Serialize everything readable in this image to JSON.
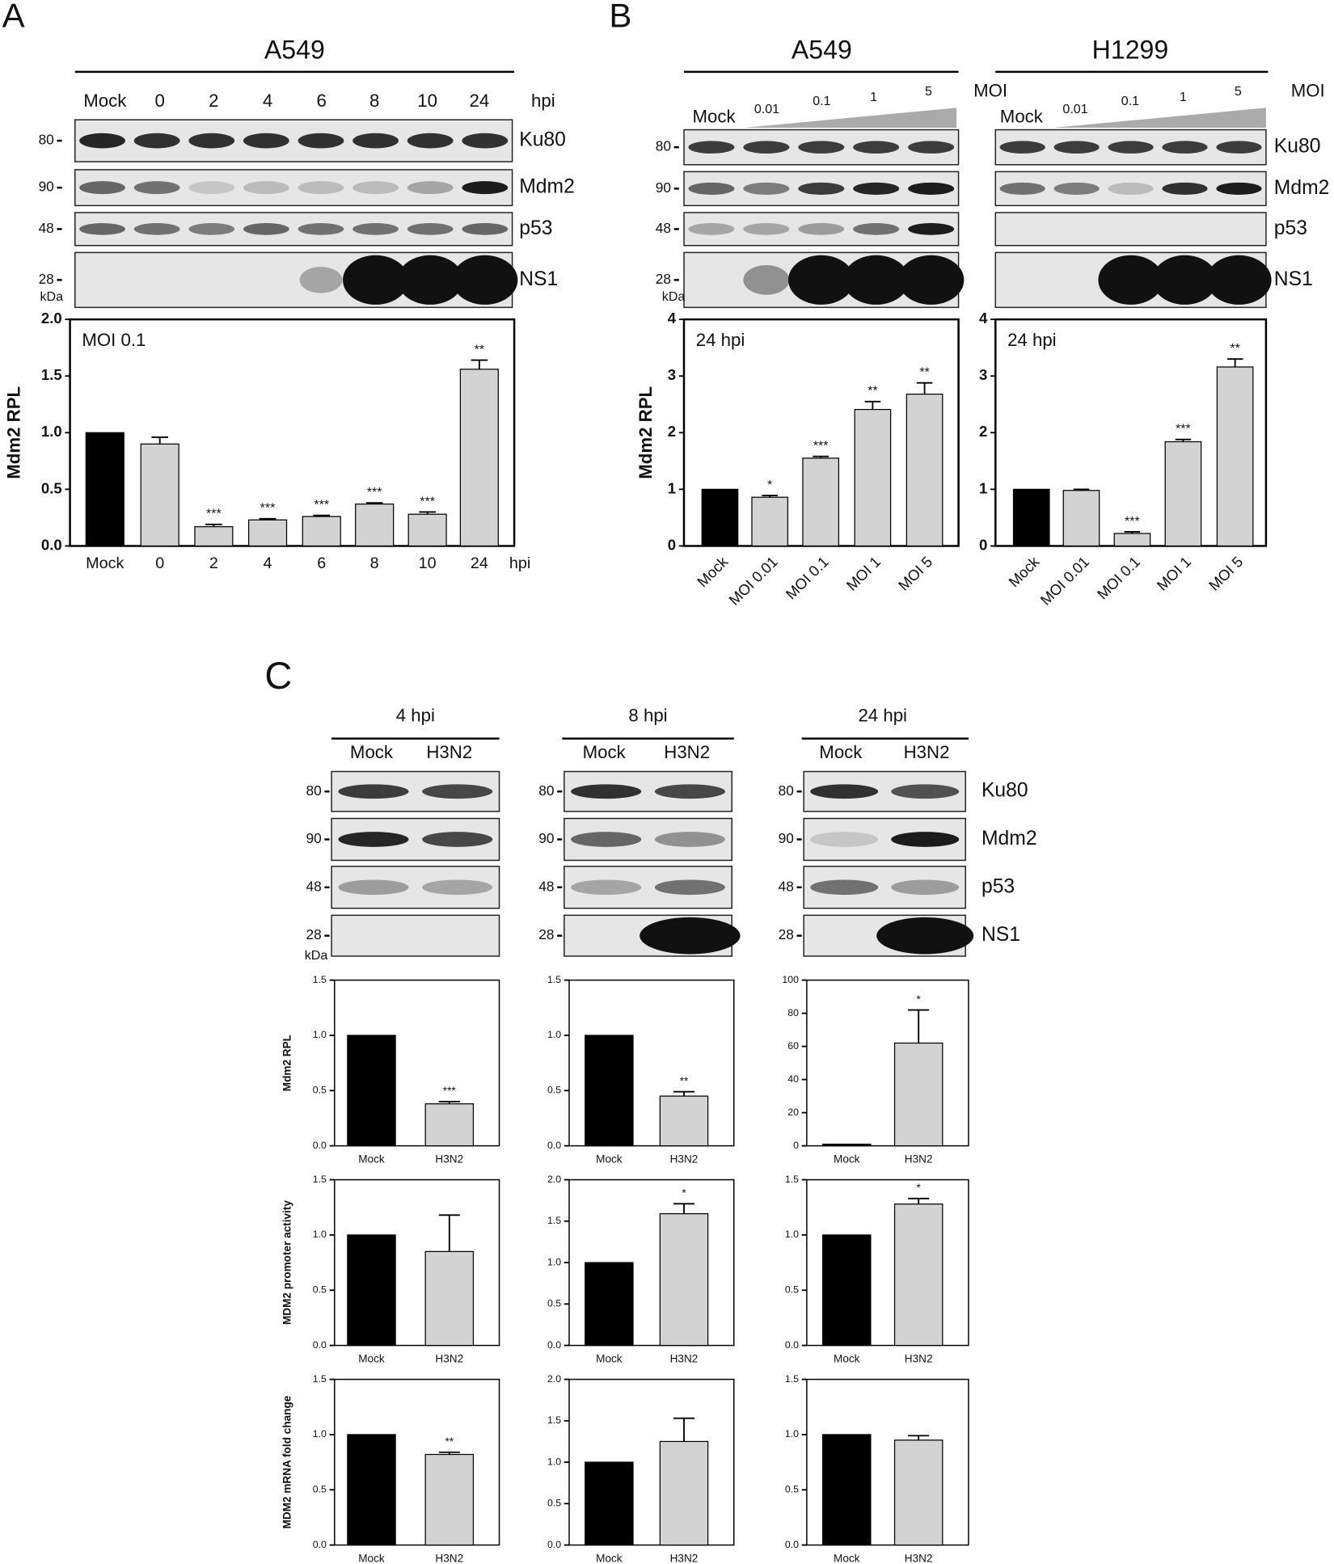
{
  "panel_labels": [
    "A",
    "B",
    "C"
  ],
  "blots": [
    {
      "title": "A549",
      "lanes": [
        "Mock",
        "0",
        "2",
        "4",
        "6",
        "8",
        "10",
        "24"
      ],
      "lane_unit": "hpi",
      "markers": [
        "80",
        "90",
        "48",
        "28"
      ],
      "marker_unit": "kDa",
      "proteins": [
        "Ku80",
        "Mdm2",
        "p53",
        "NS1"
      ]
    },
    {
      "title": "A549",
      "lanes": [
        "Mock",
        "0.01",
        "0.1",
        "1",
        "5"
      ],
      "lane_unit": "MOI",
      "markers": [
        "80",
        "90",
        "48",
        "28"
      ],
      "marker_unit": "kDa"
    },
    {
      "title": "H1299",
      "lanes": [
        "Mock",
        "0.01",
        "0.1",
        "1",
        "5"
      ],
      "lane_unit": "MOI",
      "proteins": [
        "Ku80",
        "Mdm2",
        "p53",
        "NS1"
      ]
    },
    {
      "title": "4 hpi",
      "lanes": [
        "Mock",
        "H3N2"
      ],
      "markers": [
        "80",
        "90",
        "48",
        "28"
      ],
      "marker_unit": "kDa"
    },
    {
      "title": "8 hpi",
      "lanes": [
        "Mock",
        "H3N2"
      ],
      "markers": [
        "80",
        "90",
        "48",
        "28"
      ]
    },
    {
      "title": "24 hpi",
      "lanes": [
        "Mock",
        "H3N2"
      ],
      "markers": [
        "80",
        "90",
        "48",
        "28"
      ],
      "proteins": [
        "Ku80",
        "Mdm2",
        "p53",
        "NS1"
      ]
    }
  ],
  "chart_data": [
    {
      "type": "bar",
      "annotation": "MOI 0.1",
      "y_label": "Mdm2 RPL",
      "x_unit": "hpi",
      "categories": [
        "Mock",
        "0",
        "2",
        "4",
        "6",
        "8",
        "10",
        "24"
      ],
      "values": [
        1,
        0.9,
        0.17,
        0.23,
        0.26,
        0.37,
        0.28,
        1.56
      ],
      "errors": [
        null,
        0.06,
        0.02,
        0.01,
        0.01,
        0.01,
        0.02,
        0.08
      ],
      "significance": [
        null,
        null,
        "***",
        "***",
        "***",
        "***",
        "***",
        "**"
      ],
      "colors": [
        "#000000",
        "#d3d3d3",
        "#d3d3d3",
        "#d3d3d3",
        "#d3d3d3",
        "#d3d3d3",
        "#d3d3d3",
        "#d3d3d3"
      ],
      "ylim": [
        0,
        2
      ],
      "yticks": [
        {
          "value": 0,
          "label": "0.0"
        },
        {
          "value": 0.5,
          "label": "0.5"
        },
        {
          "value": 1,
          "label": "1.0"
        },
        {
          "value": 1.5,
          "label": "1.5"
        },
        {
          "value": 2,
          "label": "2.0"
        }
      ]
    },
    {
      "type": "bar",
      "annotation": "24 hpi",
      "y_label": "Mdm2 RPL",
      "categories": [
        "Mock",
        "MOI 0.01",
        "MOI 0.1",
        "MOI 1",
        "MOI 5"
      ],
      "values": [
        1,
        0.86,
        1.55,
        2.41,
        2.68
      ],
      "errors": [
        null,
        0.03,
        0.03,
        0.14,
        0.2
      ],
      "significance": [
        null,
        "*",
        "***",
        "**",
        "**"
      ],
      "colors": [
        "#000000",
        "#d3d3d3",
        "#d3d3d3",
        "#d3d3d3",
        "#d3d3d3"
      ],
      "ylim": [
        0,
        4
      ],
      "yticks": [
        0,
        1,
        2,
        3,
        4
      ]
    },
    {
      "type": "bar",
      "annotation": "24 hpi",
      "categories": [
        "Mock",
        "MOI 0.01",
        "MOI 0.1",
        "MOI 1",
        "MOI 5"
      ],
      "values": [
        1,
        0.98,
        0.22,
        1.84,
        3.16
      ],
      "errors": [
        null,
        0.02,
        0.03,
        0.04,
        0.14
      ],
      "significance": [
        null,
        null,
        "***",
        "***",
        "**"
      ],
      "colors": [
        "#000000",
        "#d3d3d3",
        "#d3d3d3",
        "#d3d3d3",
        "#d3d3d3"
      ],
      "ylim": [
        0,
        4
      ],
      "yticks": [
        0,
        1,
        2,
        3,
        4
      ]
    },
    {
      "type": "bar",
      "y_label": "Mdm2 RPL",
      "categories": [
        "Mock",
        "H3N2"
      ],
      "values": [
        1,
        0.38
      ],
      "errors": [
        null,
        0.02
      ],
      "significance": [
        null,
        "***"
      ],
      "colors": [
        "#000000",
        "#d3d3d3"
      ],
      "ylim": [
        0,
        1.5
      ],
      "yticks": [
        {
          "value": 0,
          "label": "0.0"
        },
        {
          "value": 0.5,
          "label": "0.5"
        },
        {
          "value": 1,
          "label": "1.0"
        },
        {
          "value": 1.5,
          "label": "1.5"
        }
      ]
    },
    {
      "type": "bar",
      "categories": [
        "Mock",
        "H3N2"
      ],
      "values": [
        1,
        0.45
      ],
      "errors": [
        null,
        0.04
      ],
      "significance": [
        null,
        "**"
      ],
      "colors": [
        "#000000",
        "#d3d3d3"
      ],
      "ylim": [
        0,
        1.5
      ],
      "yticks": [
        {
          "value": 0,
          "label": "0.0"
        },
        {
          "value": 0.5,
          "label": "0.5"
        },
        {
          "value": 1,
          "label": "1.0"
        },
        {
          "value": 1.5,
          "label": "1.5"
        }
      ]
    },
    {
      "type": "bar",
      "categories": [
        "Mock",
        "H3N2"
      ],
      "values": [
        1,
        62
      ],
      "errors": [
        null,
        20
      ],
      "significance": [
        null,
        "*"
      ],
      "colors": [
        "#000000",
        "#d3d3d3"
      ],
      "ylim": [
        0,
        100
      ],
      "yticks": [
        0,
        20,
        40,
        60,
        80,
        100
      ]
    },
    {
      "type": "bar",
      "y_label": "MDM2 promoter activity",
      "categories": [
        "Mock",
        "H3N2"
      ],
      "values": [
        1,
        0.85
      ],
      "errors": [
        null,
        0.33
      ],
      "colors": [
        "#000000",
        "#d3d3d3"
      ],
      "ylim": [
        0,
        1.5
      ],
      "yticks": [
        {
          "value": 0,
          "label": "0.0"
        },
        {
          "value": 0.5,
          "label": "0.5"
        },
        {
          "value": 1,
          "label": "1.0"
        },
        {
          "value": 1.5,
          "label": "1.5"
        }
      ]
    },
    {
      "type": "bar",
      "categories": [
        "Mock",
        "H3N2"
      ],
      "values": [
        1,
        1.59
      ],
      "errors": [
        null,
        0.12
      ],
      "significance": [
        null,
        "*"
      ],
      "colors": [
        "#000000",
        "#d3d3d3"
      ],
      "ylim": [
        0,
        2
      ],
      "yticks": [
        {
          "value": 0,
          "label": "0.0"
        },
        {
          "value": 0.5,
          "label": "0.5"
        },
        {
          "value": 1,
          "label": "1.0"
        },
        {
          "value": 1.5,
          "label": "1.5"
        },
        {
          "value": 2,
          "label": "2.0"
        }
      ]
    },
    {
      "type": "bar",
      "categories": [
        "Mock",
        "H3N2"
      ],
      "values": [
        1,
        1.28
      ],
      "errors": [
        null,
        0.05
      ],
      "significance": [
        null,
        "*"
      ],
      "colors": [
        "#000000",
        "#d3d3d3"
      ],
      "ylim": [
        0,
        1.5
      ],
      "yticks": [
        {
          "value": 0,
          "label": "0.0"
        },
        {
          "value": 0.5,
          "label": "0.5"
        },
        {
          "value": 1,
          "label": "1.0"
        },
        {
          "value": 1.5,
          "label": "1.5"
        }
      ]
    },
    {
      "type": "bar",
      "y_label": "MDM2 mRNA fold change",
      "categories": [
        "Mock",
        "H3N2"
      ],
      "values": [
        1,
        0.82
      ],
      "errors": [
        null,
        0.02
      ],
      "significance": [
        null,
        "**"
      ],
      "colors": [
        "#000000",
        "#d3d3d3"
      ],
      "ylim": [
        0,
        1.5
      ],
      "yticks": [
        {
          "value": 0,
          "label": "0.0"
        },
        {
          "value": 0.5,
          "label": "0.5"
        },
        {
          "value": 1,
          "label": "1.0"
        },
        {
          "value": 1.5,
          "label": "1.5"
        }
      ]
    },
    {
      "type": "bar",
      "categories": [
        "Mock",
        "H3N2"
      ],
      "values": [
        1,
        1.25
      ],
      "errors": [
        null,
        0.28
      ],
      "colors": [
        "#000000",
        "#d3d3d3"
      ],
      "ylim": [
        0,
        2
      ],
      "yticks": [
        {
          "value": 0,
          "label": "0.0"
        },
        {
          "value": 0.5,
          "label": "0.5"
        },
        {
          "value": 1,
          "label": "1.0"
        },
        {
          "value": 1.5,
          "label": "1.5"
        },
        {
          "value": 2,
          "label": "2.0"
        }
      ]
    },
    {
      "type": "bar",
      "categories": [
        "Mock",
        "H3N2"
      ],
      "values": [
        1,
        0.95
      ],
      "errors": [
        null,
        0.04
      ],
      "colors": [
        "#000000",
        "#d3d3d3"
      ],
      "ylim": [
        0,
        1.5
      ],
      "yticks": [
        {
          "value": 0,
          "label": "0.0"
        },
        {
          "value": 0.5,
          "label": "0.5"
        },
        {
          "value": 1,
          "label": "1.0"
        },
        {
          "value": 1.5,
          "label": "1.5"
        }
      ]
    }
  ]
}
